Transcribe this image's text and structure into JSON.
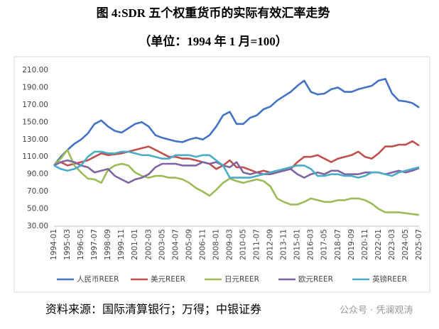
{
  "chart_data": {
    "type": "line",
    "title": "图 4:SDR 五个权重货币的实际有效汇率走势",
    "subtitle": "（单位：1994 年 1 月=100）",
    "source": "资料来源：国际清算银行；万得；中银证券",
    "watermark": "公众号 · 凭澜观涛",
    "categories": [
      "1994-01",
      null,
      "1995-03",
      null,
      "1996-05",
      null,
      "1997-07",
      null,
      "1998-09",
      null,
      "1999-11",
      null,
      "2001-01",
      null,
      "2002-03",
      null,
      "2003-05",
      null,
      "2004-07",
      null,
      "2005-09",
      null,
      "2006-11",
      null,
      "2008-01",
      null,
      "2009-03",
      null,
      "2010-05",
      null,
      "2011-07",
      null,
      "2012-09",
      null,
      "2013-11",
      null,
      "2015-01",
      null,
      "2016-03",
      null,
      "2017-05",
      null,
      "2018-07",
      null,
      "2019-09",
      null,
      "2020-11",
      null,
      "2022-01",
      null,
      "2023-03",
      null,
      "2024-05",
      null,
      "2025-07"
    ],
    "ylim": [
      30,
      210
    ],
    "yticks": [
      {
        "value": 30,
        "label": "30.00"
      },
      {
        "value": 50,
        "label": "50.00"
      },
      {
        "value": 70,
        "label": "70.00"
      },
      {
        "value": 90,
        "label": "90.00"
      },
      {
        "value": 110,
        "label": "110.00"
      },
      {
        "value": 130,
        "label": "130.00"
      },
      {
        "value": 150,
        "label": "150.00"
      },
      {
        "value": 170,
        "label": "170.00"
      },
      {
        "value": 190,
        "label": "190.00"
      },
      {
        "value": 210,
        "label": "210.00"
      }
    ],
    "grid": false,
    "legend": "bottom",
    "series": [
      {
        "name": "人民币REER",
        "color": "#4472c4",
        "values": [
          100,
          110,
          118,
          125,
          130,
          137,
          148,
          152,
          145,
          140,
          138,
          143,
          148,
          150,
          145,
          135,
          132,
          130,
          128,
          127,
          130,
          132,
          130,
          135,
          145,
          158,
          162,
          148,
          148,
          155,
          158,
          165,
          168,
          175,
          180,
          185,
          192,
          198,
          185,
          182,
          183,
          188,
          190,
          185,
          185,
          188,
          190,
          192,
          198,
          200,
          183,
          175,
          174,
          172,
          167
        ]
      },
      {
        "name": "美元REER",
        "color": "#c0504d",
        "values": [
          100,
          104,
          100,
          102,
          104,
          106,
          110,
          114,
          112,
          113,
          114,
          116,
          118,
          120,
          122,
          118,
          114,
          110,
          110,
          108,
          108,
          106,
          104,
          102,
          96,
          100,
          106,
          98,
          98,
          95,
          92,
          94,
          92,
          94,
          94,
          96,
          104,
          110,
          110,
          112,
          108,
          104,
          108,
          110,
          112,
          116,
          110,
          108,
          114,
          122,
          122,
          124,
          124,
          128,
          123
        ]
      },
      {
        "name": "日元REER",
        "color": "#9bbb59",
        "values": [
          100,
          108,
          118,
          100,
          92,
          85,
          84,
          80,
          95,
          100,
          102,
          100,
          92,
          88,
          86,
          88,
          88,
          86,
          86,
          84,
          80,
          74,
          70,
          65,
          72,
          80,
          85,
          82,
          80,
          82,
          84,
          82,
          76,
          62,
          58,
          55,
          55,
          58,
          62,
          60,
          58,
          58,
          60,
          60,
          62,
          62,
          60,
          56,
          50,
          46,
          46,
          46,
          45,
          44,
          43
        ]
      },
      {
        "name": "欧元REER",
        "color": "#8064a2",
        "values": [
          100,
          104,
          106,
          104,
          100,
          98,
          92,
          94,
          96,
          88,
          84,
          80,
          84,
          86,
          90,
          98,
          102,
          102,
          102,
          100,
          100,
          100,
          104,
          102,
          104,
          100,
          98,
          104,
          92,
          90,
          92,
          90,
          90,
          92,
          94,
          96,
          90,
          86,
          90,
          92,
          90,
          94,
          94,
          90,
          90,
          90,
          92,
          92,
          92,
          90,
          92,
          94,
          92,
          94,
          97
        ]
      },
      {
        "name": "英镑REER",
        "color": "#4bacc6",
        "values": [
          100,
          96,
          94,
          96,
          100,
          110,
          116,
          116,
          114,
          114,
          116,
          116,
          114,
          112,
          112,
          110,
          108,
          108,
          112,
          112,
          112,
          110,
          112,
          112,
          106,
          100,
          86,
          86,
          86,
          86,
          88,
          90,
          92,
          94,
          96,
          98,
          100,
          100,
          96,
          88,
          88,
          90,
          90,
          88,
          88,
          86,
          88,
          92,
          92,
          90,
          88,
          92,
          94,
          96,
          98
        ]
      }
    ]
  }
}
